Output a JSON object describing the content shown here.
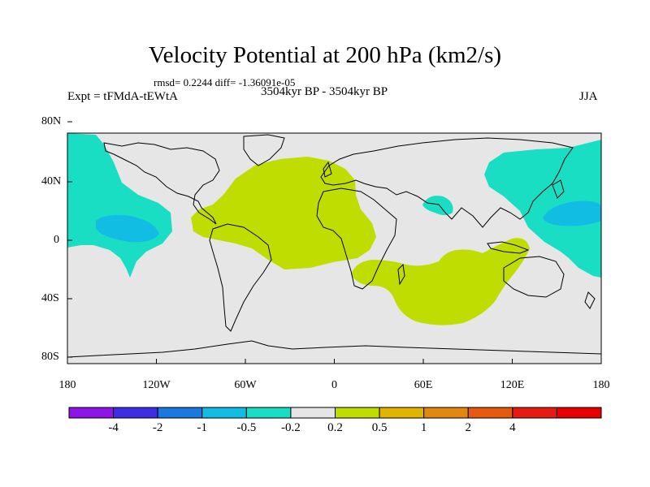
{
  "title": "Velocity Potential at 200 hPa (km2/s)",
  "stats": "rmsd= 0.2244 diff= -1.36091e-05",
  "experiment": "Expt = tFMdA-tEWtA",
  "period": "3504kyr BP - 3504kyr BP",
  "season": "JJA",
  "lat_labels": [
    "80N",
    "40N",
    "0",
    "40S",
    "80S"
  ],
  "lon_labels": [
    "180",
    "120W",
    "60W",
    "0",
    "60E",
    "120E",
    "180"
  ],
  "colorbar": {
    "colors": [
      "#8d15e6",
      "#3d2ee6",
      "#1a78e0",
      "#12bde3",
      "#1adec3",
      "#e5e5e5",
      "#bfdd00",
      "#e1b400",
      "#e08812",
      "#e55a0f",
      "#e51a12",
      "#e60000"
    ],
    "labels": [
      "-4",
      "-2",
      "-1",
      "-0.5",
      "-0.2",
      "0.2",
      "0.5",
      "1",
      "2",
      "4"
    ]
  },
  "fills": {
    "background": "#e6e6e6",
    "negative": "#1adec3",
    "strong_negative": "#12bde3",
    "positive": "#bfdd00"
  }
}
